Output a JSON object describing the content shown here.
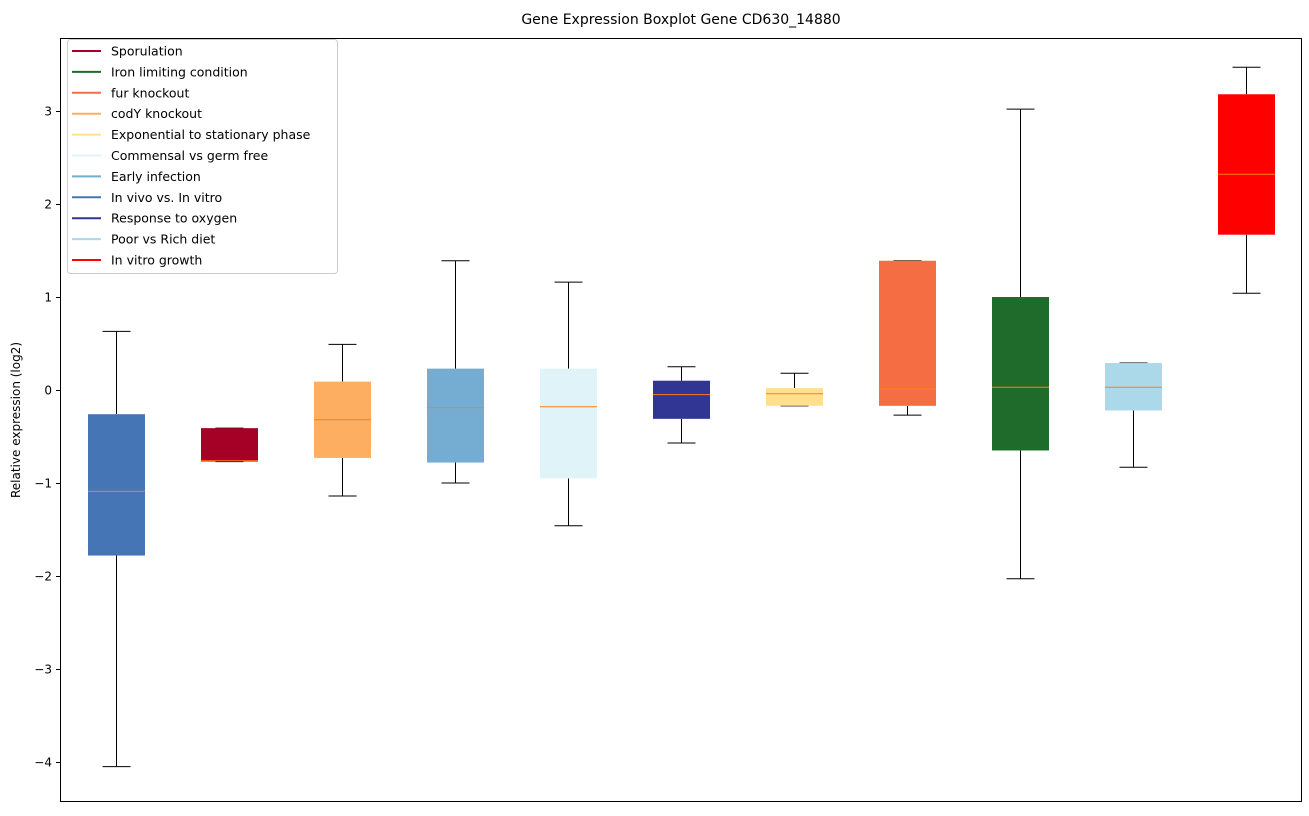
{
  "chart_data": {
    "type": "boxplot",
    "title": "Gene Expression Boxplot Gene CD630_14880",
    "xlabel": "",
    "ylabel": "Relative expression (log2)",
    "ylim": [
      -4.43,
      3.785
    ],
    "yticks": [
      -4,
      -3,
      -2,
      -1,
      0,
      1,
      2,
      3
    ],
    "ytick_labels": [
      "−4",
      "−3",
      "−2",
      "−1",
      "0",
      "1",
      "2",
      "3"
    ],
    "grid": false,
    "legend_position": "top-left",
    "median_color": "#ff7f0e",
    "legend": [
      {
        "label": "Sporulation",
        "color": "#a50026"
      },
      {
        "label": "Iron limiting condition",
        "color": "#1f6b2b"
      },
      {
        "label": "fur knockout",
        "color": "#f46d43"
      },
      {
        "label": "codY knockout",
        "color": "#fdae61"
      },
      {
        "label": "Exponential to stationary phase",
        "color": "#fee090"
      },
      {
        "label": "Commensal vs germ free",
        "color": "#e0f3f8"
      },
      {
        "label": "Early infection",
        "color": "#74add1"
      },
      {
        "label": "In vivo vs. In vitro",
        "color": "#4575b4"
      },
      {
        "label": "Response to oxygen",
        "color": "#313695"
      },
      {
        "label": "Poor vs Rich diet",
        "color": "#abd9e9"
      },
      {
        "label": "In vitro growth",
        "color": "#ff0000"
      }
    ],
    "boxes": [
      {
        "group": "In vivo vs. In vitro",
        "color": "#4575b4",
        "whislo": -4.05,
        "q1": -1.78,
        "median": -1.09,
        "q3": -0.26,
        "whishi": 0.63
      },
      {
        "group": "Sporulation",
        "color": "#a50026",
        "whislo": -0.77,
        "q1": -0.77,
        "median": -0.76,
        "q3": -0.41,
        "whishi": -0.41
      },
      {
        "group": "codY knockout",
        "color": "#fdae61",
        "whislo": -1.14,
        "q1": -0.73,
        "median": -0.32,
        "q3": 0.09,
        "whishi": 0.49
      },
      {
        "group": "Early infection",
        "color": "#74add1",
        "whislo": -1.0,
        "q1": -0.78,
        "median": -0.19,
        "q3": 0.23,
        "whishi": 1.39
      },
      {
        "group": "Commensal vs germ free",
        "color": "#e0f3f8",
        "whislo": -1.46,
        "q1": -0.95,
        "median": -0.18,
        "q3": 0.23,
        "whishi": 1.16
      },
      {
        "group": "Response to oxygen",
        "color": "#313695",
        "whislo": -0.57,
        "q1": -0.31,
        "median": -0.05,
        "q3": 0.1,
        "whishi": 0.25
      },
      {
        "group": "Exponential to stationary phase",
        "color": "#fee090",
        "whislo": -0.17,
        "q1": -0.17,
        "median": -0.04,
        "q3": 0.02,
        "whishi": 0.18
      },
      {
        "group": "fur knockout",
        "color": "#f46d43",
        "whislo": -0.27,
        "q1": -0.17,
        "median": 0.01,
        "q3": 1.39,
        "whishi": 1.39
      },
      {
        "group": "Iron limiting condition",
        "color": "#1f6b2b",
        "whislo": -2.03,
        "q1": -0.65,
        "median": 0.03,
        "q3": 1.0,
        "whishi": 3.02
      },
      {
        "group": "Poor vs Rich diet",
        "color": "#abd9e9",
        "whislo": -0.83,
        "q1": -0.22,
        "median": 0.03,
        "q3": 0.29,
        "whishi": 0.29
      },
      {
        "group": "In vitro growth",
        "color": "#ff0000",
        "whislo": 1.04,
        "q1": 1.67,
        "median": 2.32,
        "q3": 3.18,
        "whishi": 3.47
      }
    ]
  }
}
